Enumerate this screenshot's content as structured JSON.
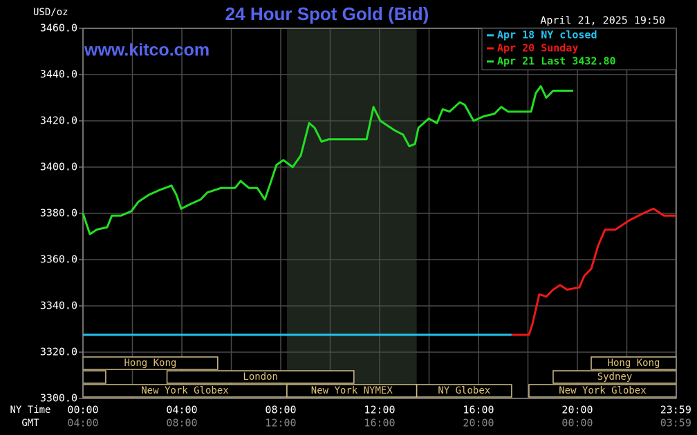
{
  "chart_data": {
    "type": "line",
    "title": "24 Hour Spot Gold (Bid)",
    "y_unit": "USD/oz",
    "watermark": "www.kitco.com",
    "timestamp": "April 21, 2025 19:50",
    "x_label": "NY Time",
    "x2_label": "GMT",
    "xlim": [
      0,
      24
    ],
    "ylim": [
      3300,
      3460
    ],
    "xticks": [
      {
        "value": 0,
        "label": "00:00"
      },
      {
        "value": 4,
        "label": "04:00"
      },
      {
        "value": 8,
        "label": "08:00"
      },
      {
        "value": 12,
        "label": "12:00"
      },
      {
        "value": 16,
        "label": "16:00"
      },
      {
        "value": 20,
        "label": "20:00"
      },
      {
        "value": 23.98,
        "label": "23:59"
      }
    ],
    "x2ticks": [
      {
        "value": 0,
        "label": "04:00"
      },
      {
        "value": 4,
        "label": "08:00"
      },
      {
        "value": 8,
        "label": "12:00"
      },
      {
        "value": 12,
        "label": "16:00"
      },
      {
        "value": 16,
        "label": "20:00"
      },
      {
        "value": 20,
        "label": "00:00"
      },
      {
        "value": 23.98,
        "label": "03:59"
      }
    ],
    "xminor": [
      2,
      6,
      10,
      14,
      18,
      22
    ],
    "yticks": [
      {
        "value": 3300,
        "label": "3300.0"
      },
      {
        "value": 3320,
        "label": "3320.0"
      },
      {
        "value": 3340,
        "label": "3340.0"
      },
      {
        "value": 3360,
        "label": "3360.0"
      },
      {
        "value": 3380,
        "label": "3380.0"
      },
      {
        "value": 3400,
        "label": "3400.0"
      },
      {
        "value": 3420,
        "label": "3420.0"
      },
      {
        "value": 3440,
        "label": "3440.0"
      },
      {
        "value": 3460,
        "label": "3460.0"
      }
    ],
    "grid": true,
    "highlight_x": [
      8.25,
      13.5
    ],
    "legend": "top-right",
    "sessions": [
      [
        {
          "label": "Hong Kong",
          "start": 0,
          "end": 5.45
        },
        {
          "label": "Hong Kong",
          "start": 20.56,
          "end": 24
        }
      ],
      [
        {
          "start": 0,
          "end": 0.92
        },
        {
          "label": "London",
          "start": 3.4,
          "end": 10.96
        },
        {
          "label": "Sydney",
          "start": 19.02,
          "end": 24
        }
      ],
      [
        {
          "label": "New York Globex",
          "start": 0,
          "end": 8.25
        },
        {
          "label": "New York NYMEX",
          "start": 8.25,
          "end": 13.5
        },
        {
          "label": "NY Globex",
          "start": 13.5,
          "end": 17.34
        },
        {
          "label": "New York Globex",
          "start": 18.04,
          "end": 24
        }
      ]
    ],
    "series": [
      {
        "name": "Apr 18 NY closed",
        "color": "#22c4f0",
        "x": [
          0,
          17.34
        ],
        "values": [
          3327.5,
          3327.5
        ]
      },
      {
        "name": "Apr 20 Sunday",
        "color": "#f01818",
        "x": [
          17.34,
          18.04,
          18.18,
          18.46,
          18.74,
          19.02,
          19.3,
          19.58,
          20.08,
          20.28,
          20.56,
          20.84,
          21.12,
          21.54,
          22.1,
          22.66,
          23.08,
          23.5,
          24.0
        ],
        "values": [
          3327.5,
          3327.5,
          3332,
          3345,
          3344,
          3347,
          3349,
          3347,
          3348,
          3353,
          3356,
          3366,
          3373,
          3373,
          3377,
          3380,
          3382,
          3379,
          3379
        ]
      },
      {
        "name": "Apr 21 Last 3432.80",
        "color": "#22e022",
        "x": [
          0,
          0.28,
          0.56,
          0.98,
          1.17,
          1.54,
          1.96,
          2.24,
          2.66,
          3.08,
          3.58,
          3.78,
          3.97,
          4.34,
          4.76,
          5.03,
          5.59,
          6.15,
          6.38,
          6.71,
          7.05,
          7.36,
          7.55,
          7.83,
          8.11,
          8.48,
          8.81,
          9.15,
          9.37,
          9.65,
          9.93,
          11.47,
          11.75,
          12.03,
          12.59,
          12.95,
          13.2,
          13.43,
          13.57,
          13.99,
          14.32,
          14.55,
          14.83,
          15.24,
          15.44,
          15.8,
          16.22,
          16.64,
          16.92,
          17.2,
          18.13,
          18.32,
          18.52,
          18.74,
          19.02,
          19.83
        ],
        "values": [
          3380,
          3371,
          3373,
          3374,
          3379,
          3379,
          3381,
          3385,
          3388,
          3390,
          3392,
          3388,
          3382,
          3384,
          3386,
          3389,
          3391,
          3391,
          3394,
          3391,
          3391,
          3386,
          3392,
          3401,
          3403,
          3400,
          3405,
          3419,
          3417,
          3411,
          3412,
          3412,
          3426,
          3420,
          3416,
          3414,
          3409,
          3410,
          3417,
          3421,
          3419,
          3425,
          3424,
          3428,
          3427,
          3420,
          3422,
          3423,
          3426,
          3424,
          3424,
          3432,
          3435,
          3430,
          3433,
          3433
        ]
      }
    ]
  }
}
